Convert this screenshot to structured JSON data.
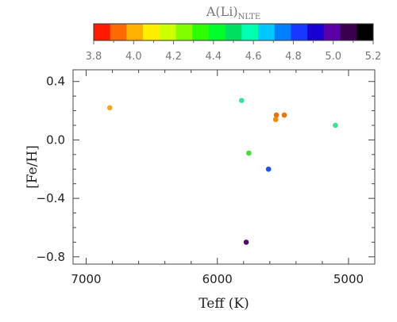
{
  "chart_data": {
    "type": "scatter",
    "xlabel": "Teff (K)",
    "ylabel": "[Fe/H]",
    "xlim": [
      7100,
      4800
    ],
    "ylim": [
      -0.85,
      0.48
    ],
    "x_reversed": true,
    "x_ticks": [
      7000,
      6000,
      5000
    ],
    "x_tick_labels": [
      "7000",
      "6000",
      "5000"
    ],
    "y_ticks": [
      0.4,
      0.0,
      -0.4,
      -0.8
    ],
    "y_tick_labels": [
      "0.4",
      "0.0",
      "−0.4",
      "−0.8"
    ],
    "grid": false,
    "colorbar": {
      "title": "A(Li)",
      "title_subscript": "NLTE",
      "range": [
        3.8,
        5.2
      ],
      "ticks": [
        3.8,
        4.0,
        4.2,
        4.4,
        4.6,
        4.8,
        5.0,
        5.2
      ],
      "tick_labels": [
        "3.8",
        "4.0",
        "4.2",
        "4.4",
        "4.6",
        "4.8",
        "5.0",
        "5.2"
      ],
      "colors": [
        "#ff1a00",
        "#ff6a00",
        "#ffb000",
        "#ffee00",
        "#ccff00",
        "#80ff00",
        "#2dff00",
        "#00ff2a",
        "#00e060",
        "#00ffb0",
        "#00c8ff",
        "#0080ff",
        "#1838ff",
        "#1a00d0",
        "#5a00a8",
        "#3a0050",
        "#000000"
      ]
    },
    "points": [
      {
        "x": 6820,
        "y": 0.22,
        "color": "#f5a524"
      },
      {
        "x": 5815,
        "y": 0.27,
        "color": "#38e0a0"
      },
      {
        "x": 5550,
        "y": 0.17,
        "color": "#e8720c"
      },
      {
        "x": 5490,
        "y": 0.17,
        "color": "#e8720c"
      },
      {
        "x": 5555,
        "y": 0.14,
        "color": "#ef8a10"
      },
      {
        "x": 5100,
        "y": 0.1,
        "color": "#3ee08a"
      },
      {
        "x": 5760,
        "y": -0.09,
        "color": "#44dd3a"
      },
      {
        "x": 5610,
        "y": -0.2,
        "color": "#1a55e8"
      },
      {
        "x": 5780,
        "y": -0.7,
        "color": "#4a0e66"
      }
    ]
  }
}
